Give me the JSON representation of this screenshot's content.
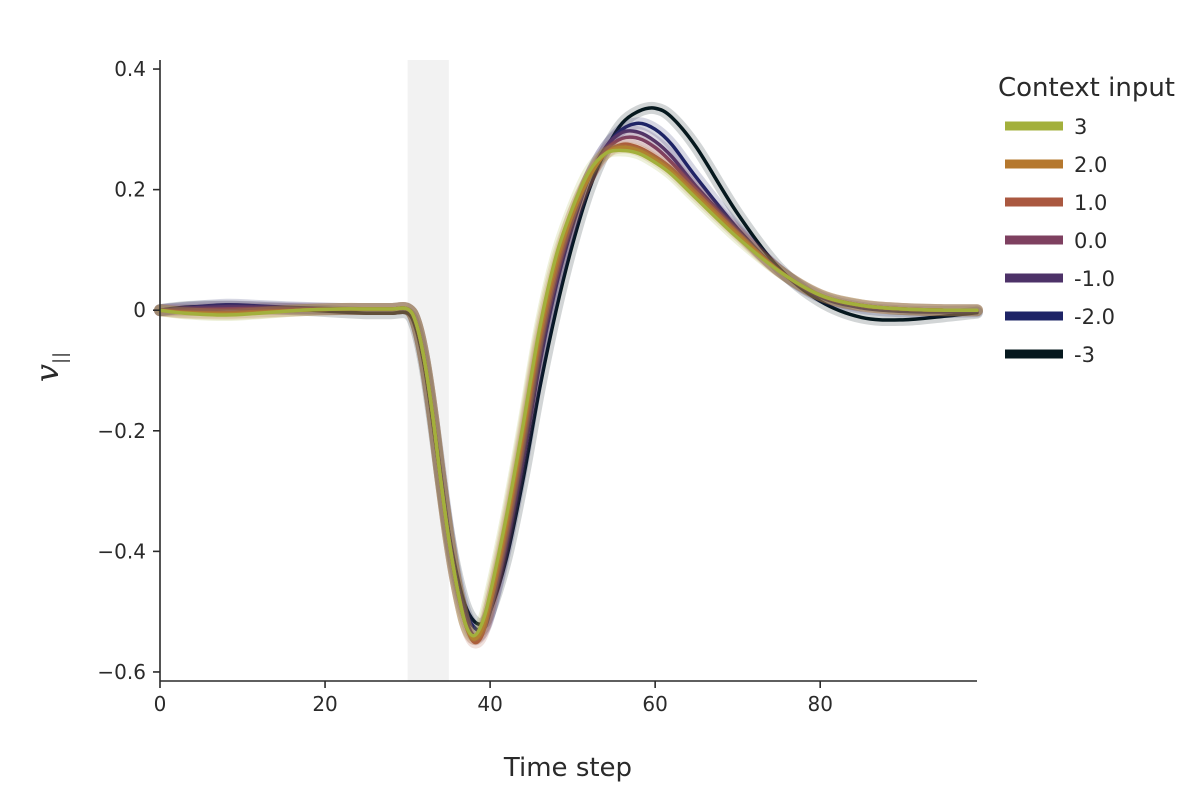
{
  "chart_data": {
    "type": "line",
    "title": "",
    "xlabel": "Time step",
    "ylabel": "v",
    "ylabel_subscript": "||",
    "xlim": [
      0,
      99
    ],
    "ylim": [
      -0.615,
      0.415
    ],
    "xticks": [
      0,
      20,
      40,
      60,
      80
    ],
    "yticks": [
      -0.6,
      -0.4,
      -0.2,
      0,
      0.2,
      0.4
    ],
    "ytick_labels": [
      "−0.6",
      "−0.4",
      "−0.2",
      "0",
      "0.2",
      "0.4"
    ],
    "shaded_region": {
      "x": [
        30,
        35
      ],
      "color": "#f2f2f2"
    },
    "grid": false,
    "legend": {
      "title": "Context input",
      "placement": "right"
    },
    "series": [
      {
        "name": "3",
        "color": "#a3b03c",
        "x": [
          0,
          3,
          8,
          12,
          17,
          22,
          25,
          28,
          30,
          31,
          32,
          33,
          34,
          35,
          36,
          37,
          38,
          39,
          40,
          42,
          44,
          46,
          48,
          50,
          52,
          54,
          56,
          58,
          60,
          62,
          65,
          70,
          75,
          80,
          85,
          90,
          95,
          99
        ],
        "y": [
          0,
          -0.005,
          -0.008,
          -0.005,
          0,
          0.002,
          0.002,
          0.002,
          0.002,
          -0.02,
          -0.08,
          -0.17,
          -0.28,
          -0.38,
          -0.46,
          -0.52,
          -0.54,
          -0.52,
          -0.47,
          -0.34,
          -0.19,
          -0.03,
          0.09,
          0.17,
          0.23,
          0.26,
          0.265,
          0.26,
          0.245,
          0.225,
          0.185,
          0.12,
          0.065,
          0.025,
          0.008,
          0.002,
          0,
          0
        ]
      },
      {
        "name": "2.0",
        "color": "#b5782e",
        "x": [
          0,
          3,
          8,
          12,
          17,
          22,
          25,
          28,
          30,
          31,
          32,
          33,
          34,
          35,
          36,
          37,
          38,
          39,
          40,
          42,
          44,
          46,
          48,
          50,
          52,
          54,
          56,
          58,
          60,
          62,
          65,
          70,
          75,
          80,
          85,
          90,
          95,
          99
        ],
        "y": [
          0,
          -0.004,
          -0.006,
          -0.004,
          0,
          0.002,
          0.002,
          0.002,
          0.002,
          -0.02,
          -0.08,
          -0.17,
          -0.28,
          -0.38,
          -0.46,
          -0.52,
          -0.545,
          -0.53,
          -0.48,
          -0.35,
          -0.2,
          -0.04,
          0.08,
          0.16,
          0.22,
          0.26,
          0.27,
          0.265,
          0.25,
          0.23,
          0.19,
          0.125,
          0.065,
          0.025,
          0.008,
          0.002,
          0,
          0
        ]
      },
      {
        "name": "1.0",
        "color": "#aa5840",
        "x": [
          0,
          3,
          8,
          12,
          17,
          22,
          25,
          28,
          30,
          31,
          32,
          33,
          34,
          35,
          36,
          37,
          38,
          39,
          40,
          42,
          44,
          46,
          48,
          50,
          52,
          54,
          56,
          58,
          60,
          62,
          65,
          70,
          75,
          80,
          85,
          90,
          95,
          99
        ],
        "y": [
          0,
          -0.003,
          -0.004,
          -0.002,
          0,
          0.002,
          0.002,
          0.002,
          0.002,
          -0.02,
          -0.08,
          -0.17,
          -0.28,
          -0.38,
          -0.46,
          -0.52,
          -0.55,
          -0.54,
          -0.49,
          -0.36,
          -0.21,
          -0.05,
          0.07,
          0.16,
          0.22,
          0.26,
          0.275,
          0.27,
          0.255,
          0.235,
          0.195,
          0.128,
          0.066,
          0.025,
          0.008,
          0.002,
          0,
          0
        ]
      },
      {
        "name": "0.0",
        "color": "#7e4060",
        "x": [
          0,
          3,
          8,
          12,
          17,
          22,
          25,
          28,
          30,
          31,
          32,
          33,
          34,
          35,
          36,
          37,
          38,
          39,
          40,
          42,
          44,
          46,
          48,
          50,
          52,
          54,
          56,
          58,
          60,
          62,
          65,
          70,
          75,
          80,
          85,
          90,
          95,
          99
        ],
        "y": [
          0,
          0,
          0.002,
          0.002,
          0.002,
          0.002,
          0.002,
          0.002,
          0.002,
          -0.02,
          -0.08,
          -0.17,
          -0.28,
          -0.38,
          -0.46,
          -0.52,
          -0.545,
          -0.535,
          -0.49,
          -0.37,
          -0.22,
          -0.06,
          0.06,
          0.15,
          0.22,
          0.265,
          0.285,
          0.285,
          0.27,
          0.245,
          0.2,
          0.13,
          0.066,
          0.025,
          0.008,
          0.002,
          0,
          0
        ]
      },
      {
        "name": "-1.0",
        "color": "#4d3268",
        "x": [
          0,
          3,
          8,
          12,
          17,
          22,
          25,
          28,
          30,
          31,
          32,
          33,
          34,
          35,
          36,
          37,
          38,
          39,
          40,
          42,
          44,
          46,
          48,
          50,
          52,
          54,
          56,
          58,
          60,
          62,
          65,
          70,
          75,
          80,
          85,
          90,
          95,
          99
        ],
        "y": [
          0,
          0.003,
          0.006,
          0.005,
          0.003,
          0.002,
          0.002,
          0.002,
          0.002,
          -0.02,
          -0.08,
          -0.17,
          -0.28,
          -0.38,
          -0.46,
          -0.51,
          -0.54,
          -0.535,
          -0.5,
          -0.38,
          -0.23,
          -0.07,
          0.05,
          0.15,
          0.22,
          0.27,
          0.295,
          0.295,
          0.28,
          0.255,
          0.205,
          0.132,
          0.066,
          0.024,
          0.007,
          0.002,
          0,
          0
        ]
      },
      {
        "name": "-2.0",
        "color": "#1e2466",
        "x": [
          0,
          3,
          8,
          12,
          17,
          22,
          25,
          28,
          30,
          31,
          32,
          33,
          34,
          35,
          36,
          37,
          38,
          39,
          40,
          42,
          44,
          46,
          48,
          50,
          52,
          54,
          56,
          58,
          60,
          62,
          65,
          70,
          75,
          80,
          85,
          90,
          95,
          99
        ],
        "y": [
          0,
          0.004,
          0.009,
          0.007,
          0.004,
          0.002,
          0.002,
          0.002,
          0.002,
          -0.02,
          -0.08,
          -0.17,
          -0.27,
          -0.37,
          -0.45,
          -0.5,
          -0.525,
          -0.53,
          -0.5,
          -0.39,
          -0.25,
          -0.09,
          0.04,
          0.14,
          0.22,
          0.27,
          0.3,
          0.31,
          0.3,
          0.275,
          0.22,
          0.135,
          0.066,
          0.022,
          0.004,
          -0.002,
          -0.003,
          -0.002
        ]
      },
      {
        "name": "-3",
        "color": "#06181e",
        "x": [
          0,
          3,
          8,
          12,
          17,
          22,
          25,
          28,
          30,
          31,
          32,
          33,
          34,
          35,
          36,
          37,
          38,
          39,
          40,
          42,
          44,
          46,
          48,
          50,
          52,
          54,
          56,
          58,
          60,
          62,
          65,
          70,
          75,
          80,
          85,
          90,
          95,
          99
        ],
        "y": [
          0,
          0.005,
          0.006,
          0.004,
          0.001,
          -0.003,
          -0.005,
          -0.005,
          -0.005,
          -0.03,
          -0.09,
          -0.18,
          -0.28,
          -0.37,
          -0.44,
          -0.49,
          -0.515,
          -0.52,
          -0.5,
          -0.41,
          -0.28,
          -0.13,
          0,
          0.11,
          0.2,
          0.265,
          0.31,
          0.33,
          0.335,
          0.32,
          0.27,
          0.16,
          0.07,
          0.015,
          -0.012,
          -0.016,
          -0.01,
          -0.004
        ]
      }
    ]
  }
}
